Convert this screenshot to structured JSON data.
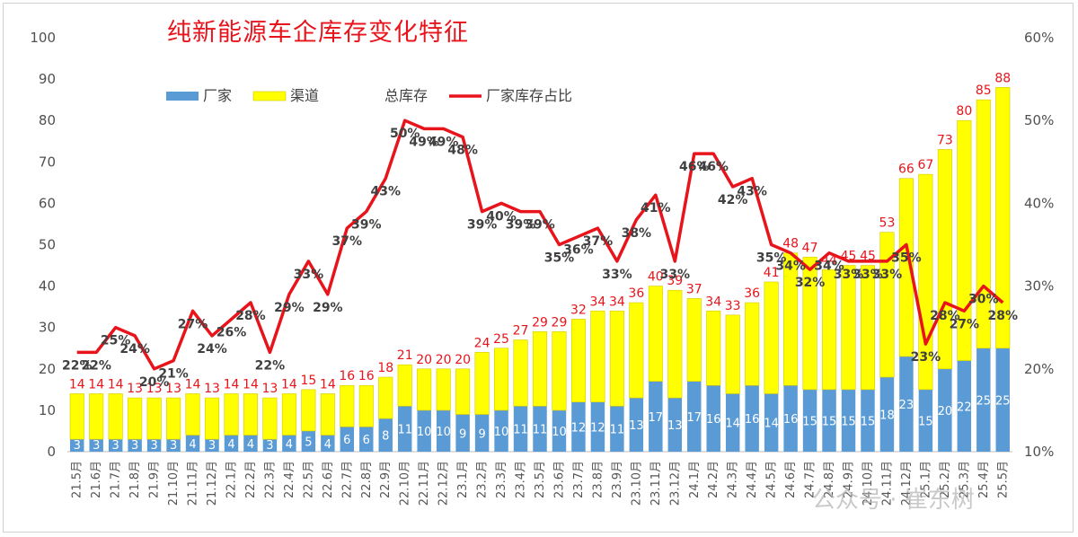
{
  "chart_data": {
    "type": "bar",
    "title": "纯新能源车企库存变化特征",
    "categories": [
      "21.5月",
      "21.6月",
      "21.7月",
      "21.8月",
      "21.9月",
      "21.10月",
      "21.11月",
      "21.12月",
      "22.1月",
      "22.2月",
      "22.3月",
      "22.4月",
      "22.5月",
      "22.6月",
      "22.7月",
      "22.8月",
      "22.9月",
      "22.10月",
      "22.11月",
      "22.12月",
      "23.1月",
      "23.2月",
      "23.3月",
      "23.4月",
      "23.5月",
      "23.6月",
      "23.7月",
      "23.8月",
      "23.9月",
      "23.10月",
      "23.11月",
      "23.12月",
      "24.1月",
      "24.2月",
      "24.3月",
      "24.4月",
      "24.5月",
      "24.6月",
      "24.7月",
      "24.8月",
      "24.9月",
      "24.10月",
      "24.11月",
      "24.12月",
      "25.1月",
      "25.2月",
      "25.3月",
      "25.4月",
      "25.5月"
    ],
    "series": [
      {
        "name": "厂家",
        "type": "stacked-bar",
        "axis": "left",
        "color": "#5b9bd5",
        "values": [
          3,
          3,
          3,
          3,
          3,
          3,
          4,
          3,
          4,
          4,
          3,
          4,
          5,
          4,
          6,
          6,
          8,
          11,
          10,
          10,
          9,
          9,
          10,
          11,
          11,
          10,
          12,
          12,
          11,
          13,
          17,
          13,
          17,
          16,
          14,
          16,
          14,
          16,
          15,
          15,
          15,
          15,
          18,
          23,
          15,
          20,
          22,
          25,
          25
        ]
      },
      {
        "name": "渠道",
        "type": "stacked-bar",
        "axis": "left",
        "color": "#ffff00",
        "values": [
          11,
          11,
          11,
          10,
          10,
          10,
          10,
          10,
          10,
          10,
          10,
          10,
          10,
          10,
          10,
          10,
          10,
          10,
          10,
          10,
          11,
          15,
          15,
          16,
          18,
          19,
          20,
          22,
          23,
          23,
          23,
          26,
          20,
          18,
          19,
          20,
          27,
          32,
          32,
          29,
          30,
          30,
          35,
          43,
          52,
          53,
          58,
          60,
          63
        ]
      },
      {
        "name": "总库存",
        "type": "label",
        "axis": "left",
        "color": "#e8141b",
        "values": [
          14,
          14,
          14,
          13,
          13,
          13,
          14,
          13,
          14,
          14,
          13,
          14,
          15,
          14,
          16,
          16,
          18,
          21,
          20,
          20,
          20,
          24,
          25,
          27,
          29,
          29,
          32,
          34,
          34,
          36,
          40,
          39,
          37,
          34,
          33,
          36,
          41,
          48,
          47,
          44,
          45,
          45,
          53,
          66,
          67,
          73,
          80,
          85,
          88
        ]
      },
      {
        "name": "厂家库存占比",
        "type": "line",
        "axis": "right",
        "color": "#e8141b",
        "values": [
          22,
          22,
          25,
          24,
          20,
          21,
          27,
          24,
          26,
          28,
          22,
          29,
          33,
          29,
          37,
          39,
          43,
          50,
          49,
          49,
          48,
          39,
          40,
          39,
          39,
          35,
          36,
          37,
          33,
          38,
          41,
          33,
          46,
          46,
          42,
          43,
          35,
          34,
          32,
          34,
          33,
          33,
          33,
          35,
          23,
          28,
          27,
          30,
          28
        ],
        "labels": [
          "22%",
          "22%",
          "25%",
          "24%",
          "20%",
          "21%",
          "27%",
          "24%",
          "26%",
          "28%",
          "22%",
          "29%",
          "33%",
          "29%",
          "37%",
          "39%",
          "43%",
          "50%",
          "49%",
          "49%",
          "48%",
          "39%",
          "40%",
          "39%",
          "39%",
          "35%",
          "36%",
          "37%",
          "33%",
          "38%",
          "41%",
          "33%",
          "46%",
          "46%",
          "42%",
          "43%",
          "35%",
          "34%",
          "32%",
          "34%",
          "33%",
          "33%",
          "33%",
          "35%",
          "23%",
          "28%",
          "27%",
          "30%",
          "28%"
        ]
      }
    ],
    "left_axis": {
      "ylim": [
        0,
        100
      ],
      "ticks": [
        "0",
        "10",
        "20",
        "30",
        "40",
        "50",
        "60",
        "70",
        "80",
        "90",
        "100"
      ]
    },
    "right_axis": {
      "ylim": [
        10,
        60
      ],
      "ticks": [
        "10%",
        "20%",
        "30%",
        "40%",
        "50%",
        "60%"
      ]
    },
    "legend": {
      "placement": "top-left",
      "items": [
        "厂家",
        "渠道",
        "总库存",
        "厂家库存占比"
      ]
    },
    "grid": false
  },
  "watermark": {
    "text": "公众号 · 崔东树"
  }
}
